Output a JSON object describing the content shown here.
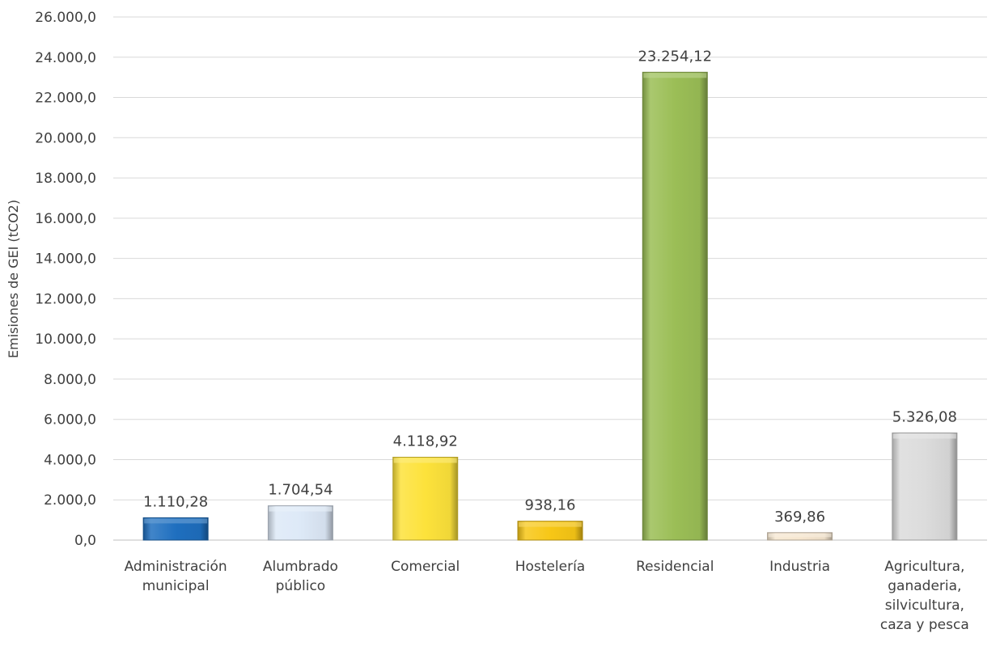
{
  "chart_data": {
    "type": "bar",
    "ylabel": "Emisiones de GEI (tCO2)",
    "ylim": [
      0,
      26000
    ],
    "y_ticks": [
      0,
      2000,
      4000,
      6000,
      8000,
      10000,
      12000,
      14000,
      16000,
      18000,
      20000,
      22000,
      24000,
      26000
    ],
    "y_tick_labels": [
      "0,0",
      "2.000,0",
      "4.000,0",
      "6.000,0",
      "8.000,0",
      "10.000,0",
      "12.000,0",
      "14.000,0",
      "16.000,0",
      "18.000,0",
      "20.000,0",
      "22.000,0",
      "24.000,0",
      "26.000,0"
    ],
    "grid": true,
    "categories": [
      [
        "Administración",
        "municipal"
      ],
      [
        "Alumbrado",
        "público"
      ],
      [
        "Comercial"
      ],
      [
        "Hostelería"
      ],
      [
        "Residencial"
      ],
      [
        "Industria"
      ],
      [
        "Agricultura,",
        "ganaderia,",
        "silvicultura,",
        "caza y pesca"
      ]
    ],
    "values": [
      1110.28,
      1704.54,
      4118.92,
      938.16,
      23254.12,
      369.86,
      5326.08
    ],
    "value_labels": [
      "1.110,28",
      "1.704,54",
      "4.118,92",
      "938,16",
      "23.254,12",
      "369,86",
      "5.326,08"
    ],
    "colors": [
      "#1f6fbf",
      "#dde9f7",
      "#fde23b",
      "#f7c716",
      "#9bbe56",
      "#f6e6cf",
      "#dcdcdc"
    ]
  }
}
